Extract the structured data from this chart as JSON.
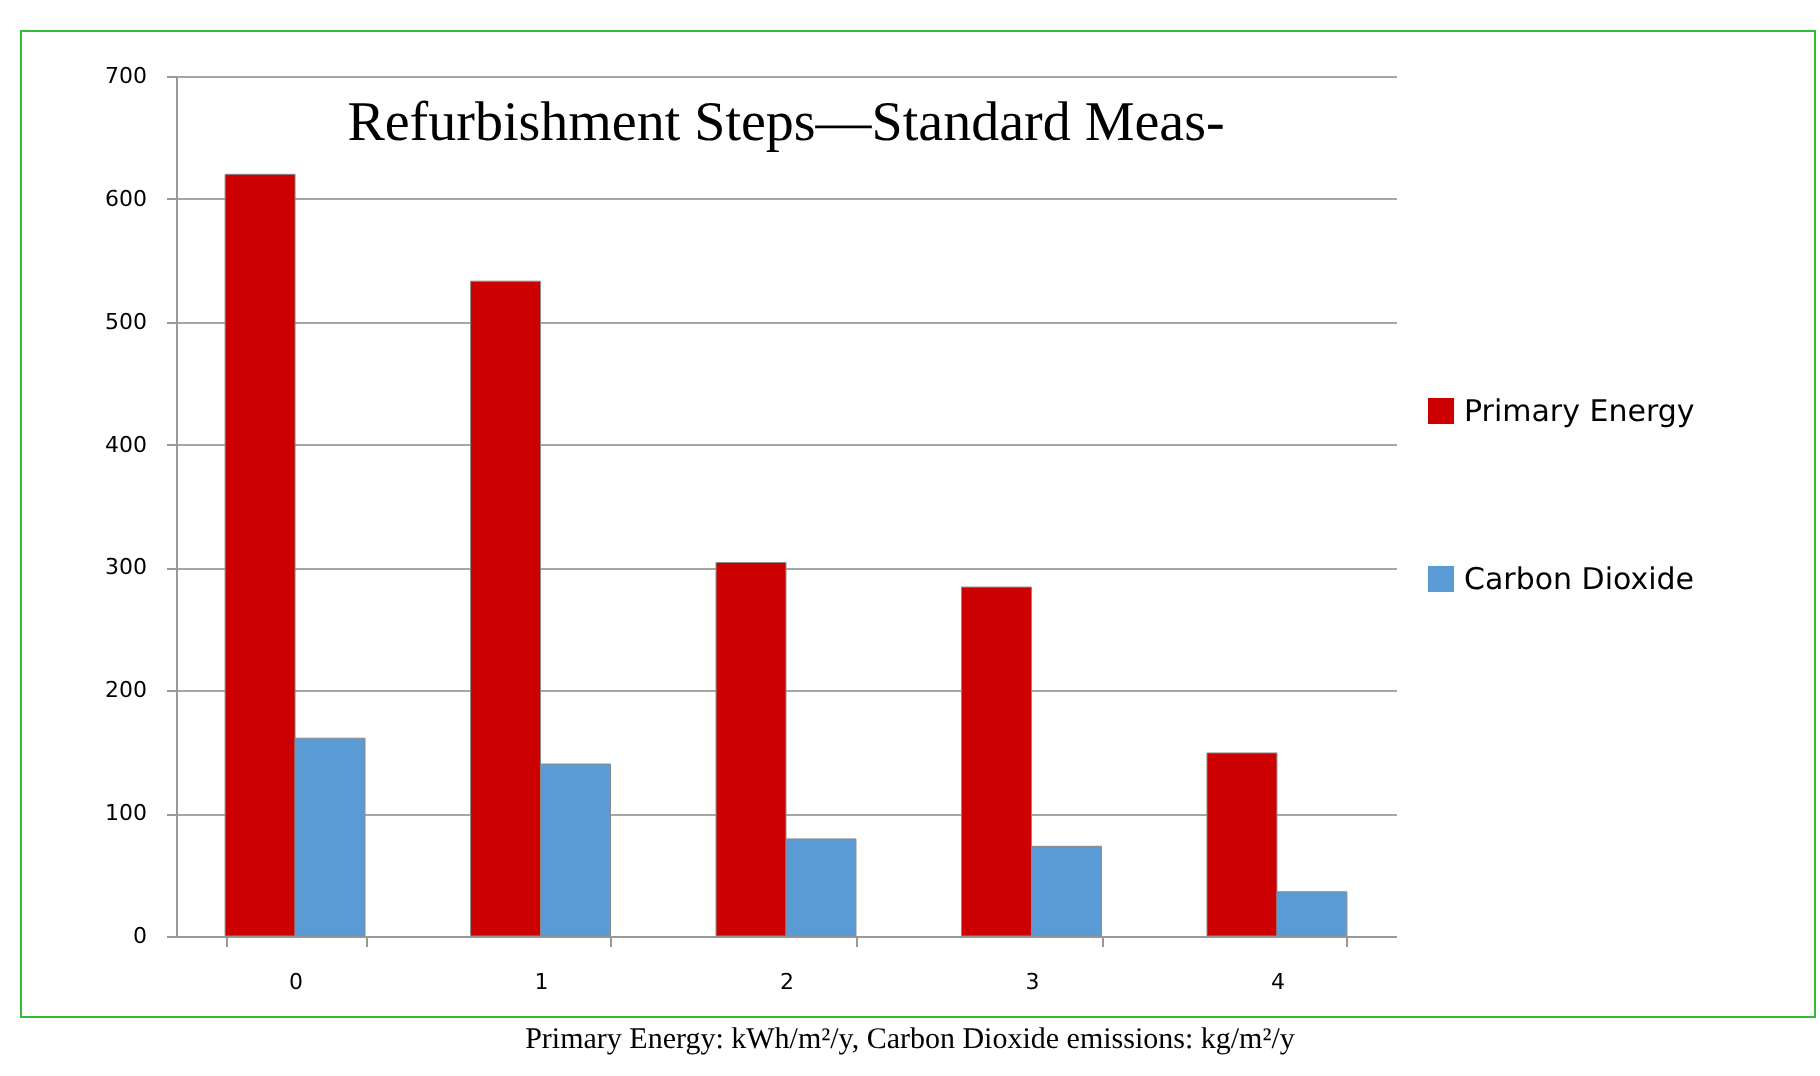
{
  "chart_data": {
    "type": "bar",
    "title": "Refurbishment Steps—Standard Meas-",
    "categories": [
      "0",
      "1",
      "2",
      "3",
      "4"
    ],
    "series": [
      {
        "name": "Primary Energy",
        "color": "#cc0000",
        "values": [
          620,
          533,
          304,
          284,
          149
        ]
      },
      {
        "name": "Carbon Dioxide",
        "color": "#5b9bd5",
        "values": [
          161,
          140,
          79,
          73,
          36
        ]
      }
    ],
    "ylim": [
      0,
      700
    ],
    "yticks": [
      0,
      100,
      200,
      300,
      400,
      500,
      600,
      700
    ],
    "grid": "y",
    "legend": "right",
    "annotations": [
      "Primary Energy: kWh/m²/y, Carbon Dioxide emissions: kg/m²/y"
    ]
  }
}
